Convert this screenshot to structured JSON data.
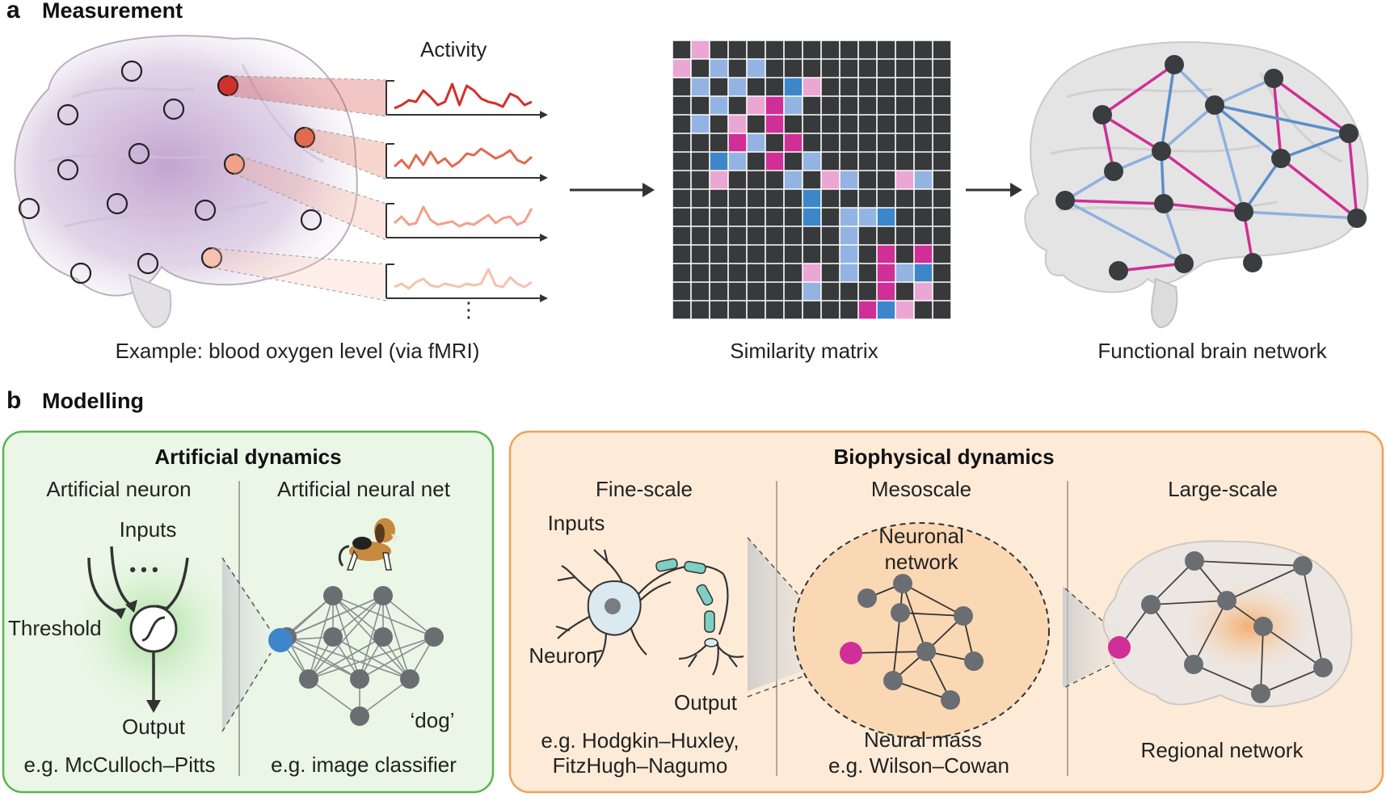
{
  "panel_a": {
    "letter": "a",
    "title": "Measurement",
    "activity_label": "Activity",
    "caption_left": "Example: blood oxygen level (via fMRI)",
    "caption_middle": "Similarity matrix",
    "caption_right": "Functional brain network",
    "ellipsis": "⋮"
  },
  "panel_b": {
    "letter": "b",
    "title": "Modelling",
    "artificial": {
      "title": "Artificial dynamics",
      "col1_title": "Artificial neuron",
      "col2_title": "Artificial neural net",
      "inputs": "Inputs",
      "dots": "• • •",
      "threshold": "Threshold",
      "output": "Output",
      "dog": "‘dog’",
      "example1": "e.g. McCulloch–Pitts",
      "example2": "e.g. image classifier"
    },
    "biophysical": {
      "title": "Biophysical dynamics",
      "col1_title": "Fine-scale",
      "col2_title": "Mesoscale",
      "col3_title": "Large-scale",
      "inputs": "Inputs",
      "neuron": "Neuron",
      "output": "Output",
      "example1_line1": "e.g. Hodgkin–Huxley,",
      "example1_line2": "FitzHugh–Nagumo",
      "neuronal_network_line1": "Neuronal",
      "neuronal_network_line2": "network",
      "neural_mass": "Neural mass",
      "example2": "e.g. Wilson–Cowan",
      "regional_network": "Regional network"
    }
  },
  "colors": {
    "matrix_bg": "#37393b",
    "light_pink": "#eba7d3",
    "magenta": "#cf2f96",
    "light_blue": "#93b4e2",
    "blue": "#3d86c9",
    "node_dark": "#3a3d40",
    "green_box": "#eaf6e6",
    "orange_box": "#fde9d6"
  }
}
